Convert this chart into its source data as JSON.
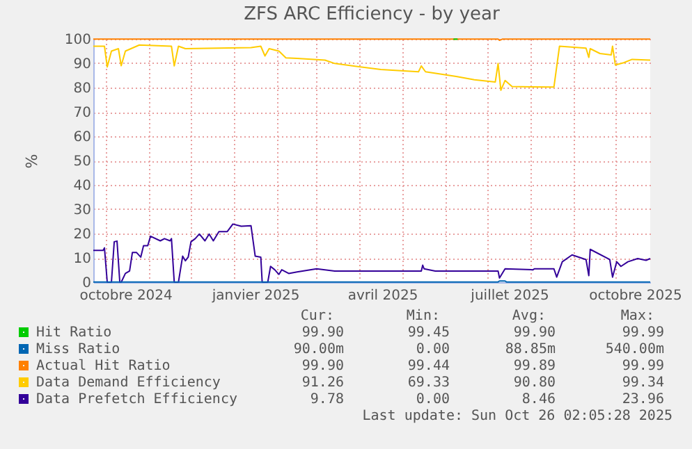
{
  "chart_data": {
    "type": "line",
    "title": "ZFS ARC Efficiency - by year",
    "ylabel": "%",
    "xlim": [
      "2024-09-22",
      "2025-10-26"
    ],
    "ylim": [
      0,
      100
    ],
    "yticks": [
      0,
      10,
      20,
      30,
      40,
      50,
      60,
      70,
      80,
      90,
      100
    ],
    "xticks": [
      {
        "value": "2024-10-01",
        "label": null
      },
      {
        "value": "2024-10-15",
        "label": "octobre 2024"
      },
      {
        "value": "2024-11-01",
        "label": null
      },
      {
        "value": "2024-12-01",
        "label": null
      },
      {
        "value": "2025-01-01",
        "label": null
      },
      {
        "value": "2025-01-16",
        "label": "janvier 2025"
      },
      {
        "value": "2025-02-01",
        "label": null
      },
      {
        "value": "2025-03-01",
        "label": null
      },
      {
        "value": "2025-04-01",
        "label": null
      },
      {
        "value": "2025-04-17",
        "label": "avril 2025"
      },
      {
        "value": "2025-05-01",
        "label": null
      },
      {
        "value": "2025-06-01",
        "label": null
      },
      {
        "value": "2025-07-01",
        "label": null
      },
      {
        "value": "2025-07-17",
        "label": "juillet 2025"
      },
      {
        "value": "2025-08-01",
        "label": null
      },
      {
        "value": "2025-09-01",
        "label": null
      },
      {
        "value": "2025-10-01",
        "label": null
      },
      {
        "value": "2025-10-15",
        "label": "octobre 2025"
      }
    ],
    "grid": true,
    "legend": "bottom",
    "marker": "none",
    "line_style": "solid",
    "series": [
      {
        "name": "Hit Ratio",
        "color": "#00cc00",
        "x": [
          "2025-06-07",
          "2025-06-10"
        ],
        "values": [
          99.9,
          99.9
        ]
      },
      {
        "name": "Miss Ratio",
        "color": "#0066b3",
        "x": [
          "2024-09-22",
          "2025-07-09",
          "2025-07-10",
          "2025-07-14",
          "2025-07-15",
          "2025-10-26"
        ],
        "values": [
          0.1,
          0.1,
          0.5,
          0.5,
          0.1,
          0.1
        ]
      },
      {
        "name": "Actual Hit Ratio",
        "color": "#ff8000",
        "x": [
          "2024-09-22",
          "2025-07-09",
          "2025-07-10",
          "2025-07-12",
          "2025-10-26"
        ],
        "values": [
          99.9,
          99.9,
          99.4,
          99.9,
          99.9
        ]
      },
      {
        "name": "Data Demand Efficiency",
        "color": "#ffcc00",
        "x": [
          "2024-09-22",
          "2024-09-30",
          "2024-10-02",
          "2024-10-05",
          "2024-10-10",
          "2024-10-12",
          "2024-10-15",
          "2024-10-25",
          "2024-11-17",
          "2024-11-19",
          "2024-11-22",
          "2024-11-27",
          "2025-01-13",
          "2025-01-20",
          "2025-01-23",
          "2025-01-26",
          "2025-02-02",
          "2025-02-07",
          "2025-02-15",
          "2025-03-07",
          "2025-03-14",
          "2025-04-16",
          "2025-05-13",
          "2025-05-15",
          "2025-05-18",
          "2025-06-09",
          "2025-06-22",
          "2025-07-07",
          "2025-07-09",
          "2025-07-11",
          "2025-07-14",
          "2025-07-19",
          "2025-08-18",
          "2025-08-22",
          "2025-09-10",
          "2025-09-12",
          "2025-09-13",
          "2025-09-20",
          "2025-09-28",
          "2025-09-29",
          "2025-10-01",
          "2025-10-07",
          "2025-10-13",
          "2025-10-26"
        ],
        "values": [
          97,
          97,
          88.5,
          95,
          96,
          89,
          95,
          97.5,
          97,
          88.9,
          97,
          96,
          96.4,
          97,
          93,
          96,
          95,
          92.2,
          92,
          91.3,
          89.9,
          87.4,
          86.5,
          88.9,
          86.5,
          84.6,
          83.2,
          82.3,
          89.9,
          78.9,
          82.9,
          80.4,
          80.2,
          97,
          96.2,
          92.4,
          96,
          94,
          93.4,
          97,
          89.3,
          90.2,
          91.6,
          91.3
        ]
      },
      {
        "name": "Data Prefetch Efficiency",
        "color": "#330099",
        "x": [
          "2024-09-22",
          "2024-09-29",
          "2024-09-30",
          "2024-10-02",
          "2024-10-05",
          "2024-10-07",
          "2024-10-09",
          "2024-10-11",
          "2024-10-12",
          "2024-10-15",
          "2024-10-18",
          "2024-10-20",
          "2024-10-23",
          "2024-10-26",
          "2024-10-28",
          "2024-10-31",
          "2024-11-02",
          "2024-11-09",
          "2024-11-12",
          "2024-11-16",
          "2024-11-17",
          "2024-11-19",
          "2024-11-22",
          "2024-11-25",
          "2024-11-27",
          "2024-11-29",
          "2024-12-01",
          "2024-12-04",
          "2024-12-07",
          "2024-12-11",
          "2024-12-14",
          "2024-12-17",
          "2024-12-21",
          "2024-12-27",
          "2024-12-31",
          "2025-01-06",
          "2025-01-13",
          "2025-01-16",
          "2025-01-20",
          "2025-01-21",
          "2025-01-25",
          "2025-01-27",
          "2025-01-30",
          "2025-02-02",
          "2025-02-04",
          "2025-02-09",
          "2025-02-15",
          "2025-03-01",
          "2025-03-14",
          "2025-05-15",
          "2025-05-16",
          "2025-05-17",
          "2025-05-25",
          "2025-07-09",
          "2025-07-10",
          "2025-07-14",
          "2025-08-03",
          "2025-08-04",
          "2025-08-18",
          "2025-08-20",
          "2025-08-24",
          "2025-08-31",
          "2025-09-10",
          "2025-09-12",
          "2025-09-13",
          "2025-09-27",
          "2025-09-29",
          "2025-10-02",
          "2025-10-05",
          "2025-10-10",
          "2025-10-17",
          "2025-10-23",
          "2025-10-26"
        ],
        "values": [
          13.1,
          13.1,
          14.1,
          0,
          0,
          16.6,
          16.9,
          0,
          0,
          3.6,
          4.6,
          12.2,
          12.2,
          10.3,
          15,
          15,
          18.9,
          17,
          17.9,
          17,
          17.9,
          0,
          0,
          10.7,
          8.8,
          10.3,
          16.6,
          17.9,
          19.8,
          17,
          19.8,
          17,
          20.8,
          20.8,
          23.9,
          23,
          23.2,
          10.7,
          10.3,
          0,
          0,
          6.5,
          5.1,
          3.2,
          5.1,
          3.6,
          4.2,
          5.5,
          4.6,
          4.6,
          7,
          5.5,
          4.6,
          4.6,
          1.7,
          5.5,
          5.1,
          5.5,
          5.5,
          2.1,
          8.4,
          11.2,
          9.3,
          2.7,
          13.5,
          9.3,
          2.1,
          8.4,
          6.5,
          8.4,
          9.7,
          9,
          9.7
        ]
      }
    ],
    "annotations": [
      "Cur:",
      "Min:",
      "Avg:",
      "Max:",
      "99.90",
      "99.45",
      "99.90",
      "99.99",
      "90.00m",
      "0.00",
      "88.85m",
      "540.00m",
      "99.90",
      "99.44",
      "99.89",
      "99.99",
      "91.26",
      "69.33",
      "90.80",
      "99.34",
      "9.78",
      "0.00",
      "8.46",
      "23.96",
      "Last update: Sun Oct 26 02:05:28 2025"
    ]
  }
}
